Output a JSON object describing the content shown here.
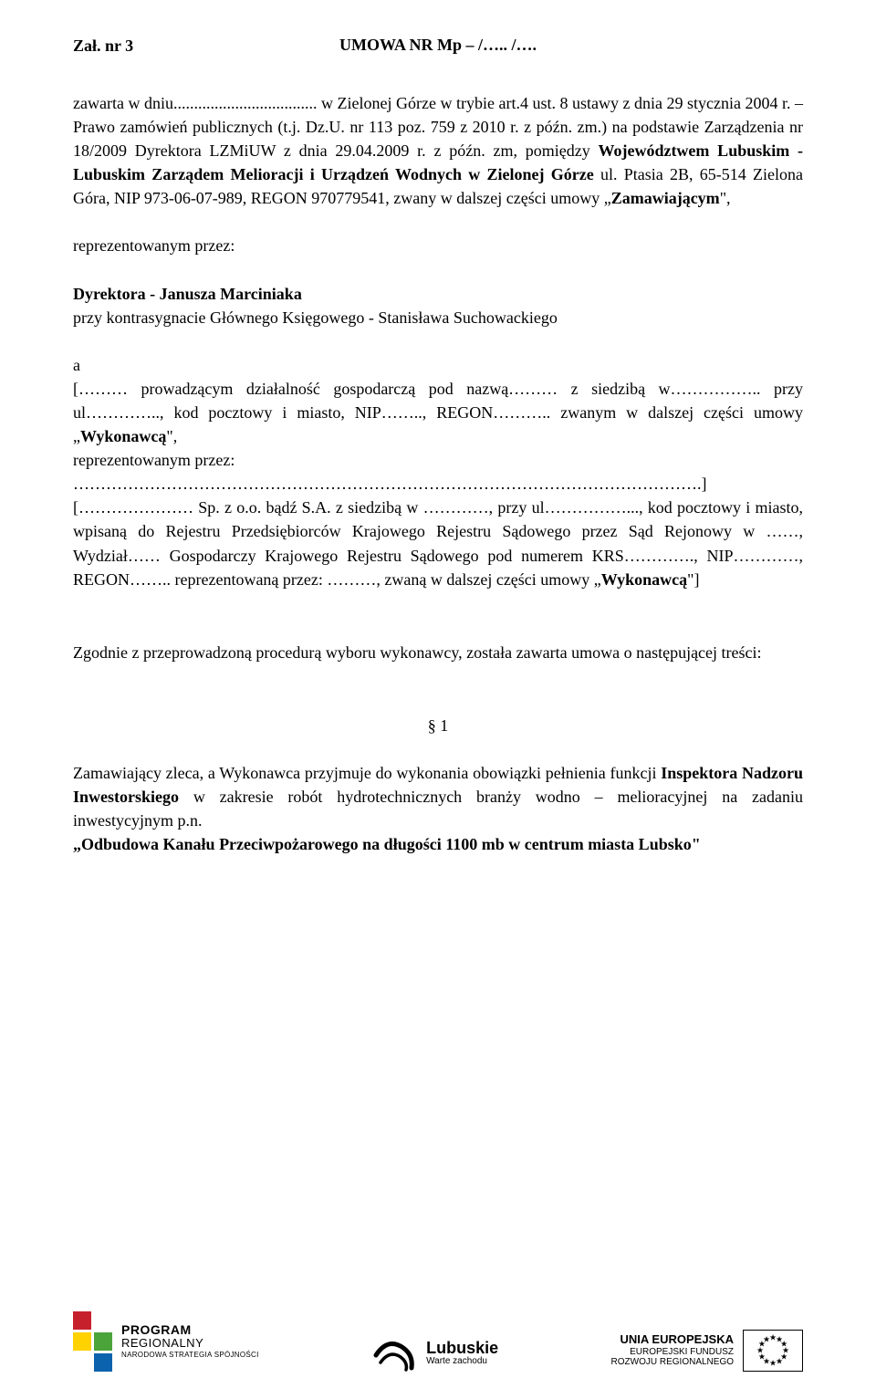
{
  "header": {
    "attachment": "Zał. nr 3",
    "title": "UMOWA NR Mp – /….. /…."
  },
  "paragraphs": {
    "p1": "zawarta w dniu................................... w Zielonej Górze w trybie art.4 ust. 8 ustawy z dnia 29 stycznia 2004 r. – Prawo zamówień publicznych (t.j. Dz.U. nr 113 poz. 759 z 2010 r. z późn. zm.) na podstawie Zarządzenia nr 18/2009 Dyrektora LZMiUW z dnia 29.04.2009 r. z późn. zm, pomiędzy ",
    "p1_bold": "Województwem Lubuskim - Lubuskim Zarządem Melioracji i Urządzeń Wodnych w Zielonej Górze",
    "p1b": " ul. Ptasia 2B, 65-514 Zielona Góra, NIP 973-06-07-989, REGON 970779541, zwany w dalszej części umowy „",
    "p1b_bold": "Zamawiającym",
    "p1b_end": "\",",
    "rep": "reprezentowanym przez:",
    "director": "Dyrektora - Janusza Marciniaka",
    "countersign": "przy kontrasygnacie Głównego Księgowego - Stanisława Suchowackiego",
    "p2_a": "a",
    "p2": "[……… prowadzącym działalność gospodarczą pod nazwą……… z siedzibą w…………….. przy ul………….., kod pocztowy i miasto, NIP…….., REGON……….. zwanym w dalszej części umowy „",
    "p2_bold": "Wykonawcą",
    "p2_end": "\",",
    "rep2": "reprezentowanym przez:",
    "dots_close": "…………………………………………………………………………………………………….]",
    "p3": "[………………… Sp. z o.o. bądź S.A. z siedzibą w …………, przy ul……………..., kod pocztowy i miasto, wpisaną do Rejestru Przedsiębiorców Krajowego Rejestru Sądowego przez Sąd Rejonowy w ……, Wydział…… Gospodarczy Krajowego Rejestru Sądowego pod numerem KRS…………., NIP…………, REGON…….. reprezentowaną przez: ………, zwaną w dalszej części umowy „",
    "p3_bold": "Wykonawcą",
    "p3_end": "\"]",
    "p4": "Zgodnie z przeprowadzoną procedurą wyboru wykonawcy, została zawarta umowa o następującej treści:",
    "section": "§ 1",
    "p5a": "Zamawiający zleca, a Wykonawca przyjmuje do wykonania obowiązki pełnienia funkcji ",
    "p5_bold": "Inspektora Nadzoru Inwestorskiego",
    "p5b": " w zakresie robót hydrotechnicznych branży wodno – melioracyjnej na zadaniu inwestycyjnym p.n.",
    "project_name": "„Odbudowa Kanału Przeciwpożarowego na długości 1100 mb w centrum miasta Lubsko\""
  },
  "footer": {
    "program": {
      "word1": "PROGRAM",
      "word2": "REGIONALNY",
      "strategy": "NARODOWA STRATEGIA SPÓJNOŚCI",
      "colors": {
        "c1": "#c7202d",
        "c2": "#ffd200",
        "c3": "#4aa43a",
        "c4": "#0b63ad"
      }
    },
    "lubuskie": {
      "name": "Lubuskie",
      "slogan": "Warte zachodu"
    },
    "eu": {
      "line1": "UNIA EUROPEJSKA",
      "line2": "EUROPEJSKI FUNDUSZ",
      "line3": "ROZWOJU REGIONALNEGO"
    }
  }
}
